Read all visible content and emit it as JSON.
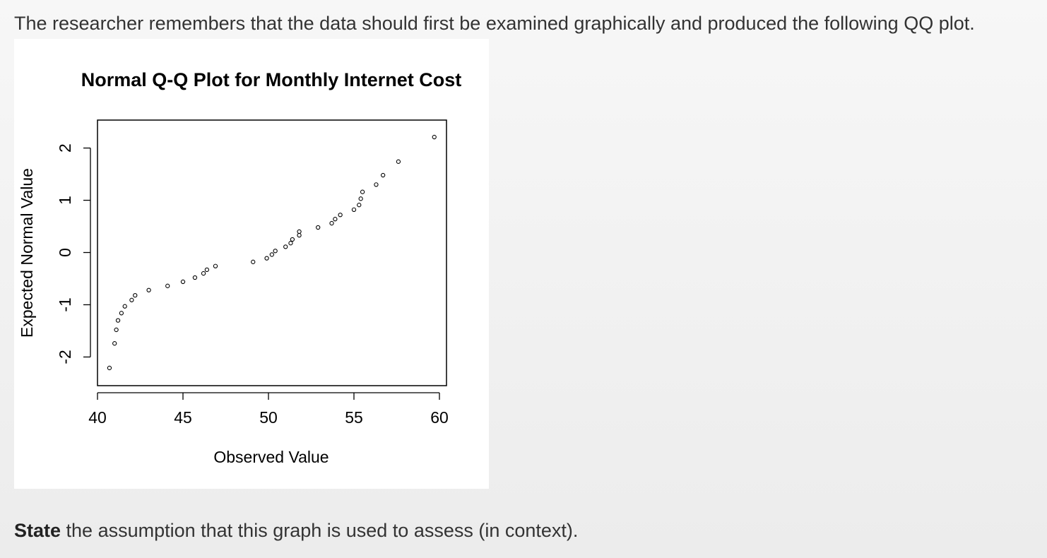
{
  "intro_text": "The researcher remembers that the data should first be examined graphically and produced the following QQ plot.",
  "question": {
    "bold": "State",
    "rest": " the assumption that this graph is used to assess (in context)."
  },
  "chart_data": {
    "type": "scatter",
    "title": "Normal Q-Q Plot for Monthly Internet Cost",
    "xlabel": "Observed Value",
    "ylabel": "Expected Normal Value",
    "xlim": [
      40,
      60
    ],
    "ylim": [
      -2.4,
      2.4
    ],
    "xticks": [
      "40",
      "45",
      "50",
      "55",
      "60"
    ],
    "yticks": [
      "-2",
      "-1",
      "0",
      "1",
      "2"
    ],
    "grid": false,
    "points": [
      {
        "x": 40.7,
        "y": -2.21
      },
      {
        "x": 41.0,
        "y": -1.74
      },
      {
        "x": 41.1,
        "y": -1.48
      },
      {
        "x": 41.2,
        "y": -1.3
      },
      {
        "x": 41.4,
        "y": -1.16
      },
      {
        "x": 41.6,
        "y": -1.03
      },
      {
        "x": 42.0,
        "y": -0.91
      },
      {
        "x": 42.2,
        "y": -0.82
      },
      {
        "x": 43.0,
        "y": -0.72
      },
      {
        "x": 44.1,
        "y": -0.64
      },
      {
        "x": 45.0,
        "y": -0.56
      },
      {
        "x": 45.7,
        "y": -0.48
      },
      {
        "x": 46.2,
        "y": -0.4
      },
      {
        "x": 46.4,
        "y": -0.33
      },
      {
        "x": 46.9,
        "y": -0.26
      },
      {
        "x": 49.1,
        "y": -0.18
      },
      {
        "x": 49.9,
        "y": -0.11
      },
      {
        "x": 50.2,
        "y": -0.04
      },
      {
        "x": 50.4,
        "y": 0.03
      },
      {
        "x": 51.0,
        "y": 0.11
      },
      {
        "x": 51.3,
        "y": 0.18
      },
      {
        "x": 51.4,
        "y": 0.25
      },
      {
        "x": 51.8,
        "y": 0.33
      },
      {
        "x": 51.8,
        "y": 0.4
      },
      {
        "x": 52.9,
        "y": 0.48
      },
      {
        "x": 53.7,
        "y": 0.56
      },
      {
        "x": 53.9,
        "y": 0.64
      },
      {
        "x": 54.2,
        "y": 0.72
      },
      {
        "x": 55.0,
        "y": 0.82
      },
      {
        "x": 55.3,
        "y": 0.91
      },
      {
        "x": 55.4,
        "y": 1.03
      },
      {
        "x": 55.5,
        "y": 1.16
      },
      {
        "x": 56.3,
        "y": 1.3
      },
      {
        "x": 56.7,
        "y": 1.48
      },
      {
        "x": 57.6,
        "y": 1.74
      },
      {
        "x": 59.7,
        "y": 2.21
      }
    ]
  }
}
